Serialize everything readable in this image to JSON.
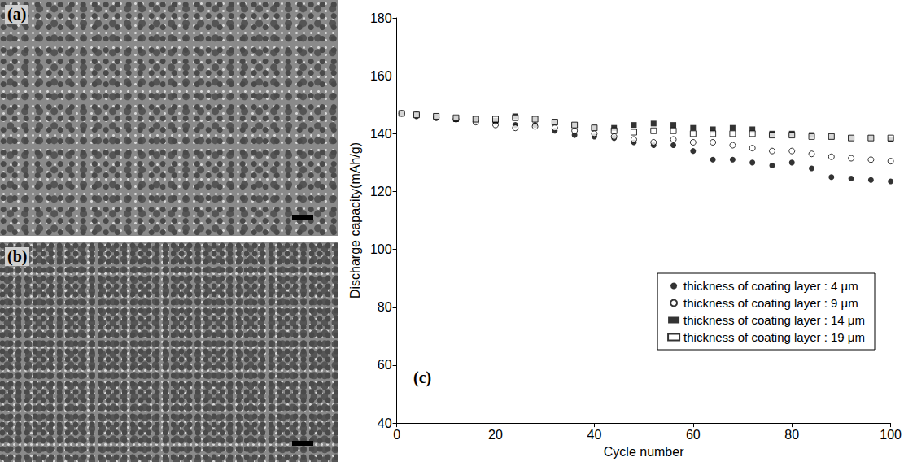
{
  "panels": [
    {
      "label": "(a)"
    },
    {
      "label": "(b)"
    }
  ],
  "chart_data": {
    "type": "scatter",
    "panel_label": "(c)",
    "x_label": "Cycle number",
    "y_label": "Discharge capacity(mAh/g)",
    "x": [
      1,
      4,
      8,
      12,
      16,
      20,
      24,
      28,
      32,
      36,
      40,
      44,
      48,
      52,
      56,
      60,
      64,
      68,
      72,
      76,
      80,
      84,
      88,
      92,
      96,
      100
    ],
    "series": [
      {
        "name": "thickness of coating layer : 4 μm",
        "color": "#000000",
        "marker": "circle",
        "values": [
          147,
          146,
          145.5,
          145,
          144.5,
          144,
          143,
          143,
          141,
          139.5,
          139,
          138.5,
          137,
          136,
          136,
          134,
          131,
          131,
          130,
          129,
          130,
          128,
          125,
          124.5,
          124,
          123.5
        ]
      },
      {
        "name": "thickness of coating layer : 9 μm",
        "color": "#000000",
        "marker": "circle-open",
        "values": [
          147,
          146.5,
          145.5,
          145,
          144,
          143,
          142,
          142.5,
          142,
          141,
          140,
          139,
          138,
          137,
          138,
          137,
          137,
          136,
          135,
          134,
          134,
          133,
          132,
          131.5,
          131,
          130.5
        ]
      },
      {
        "name": "thickness of coating layer : 14 μm",
        "color": "#000000",
        "marker": "square",
        "values": [
          147,
          146.5,
          146,
          145,
          145,
          144.5,
          146,
          145,
          144,
          143,
          142,
          142,
          143,
          143.5,
          143,
          142,
          141.5,
          142,
          141.5,
          140,
          140,
          139.5,
          139,
          138.5,
          138.5,
          138
        ]
      },
      {
        "name": "thickness of coating layer : 19 μm",
        "color": "#000000",
        "marker": "square-open",
        "values": [
          147,
          146.5,
          146,
          145.5,
          145,
          145,
          145.5,
          145,
          144,
          143,
          142,
          141,
          140.5,
          141,
          141,
          140,
          140,
          140,
          140,
          139.5,
          139.5,
          139,
          139,
          138.5,
          138.5,
          138.5
        ]
      }
    ],
    "xlim": [
      0,
      100
    ],
    "xticks": [
      0,
      20,
      40,
      60,
      80,
      100
    ],
    "ylim": [
      40,
      180
    ],
    "yticks": [
      40,
      60,
      80,
      100,
      120,
      140,
      160,
      180
    ],
    "grid": false,
    "legend": "lower right"
  }
}
